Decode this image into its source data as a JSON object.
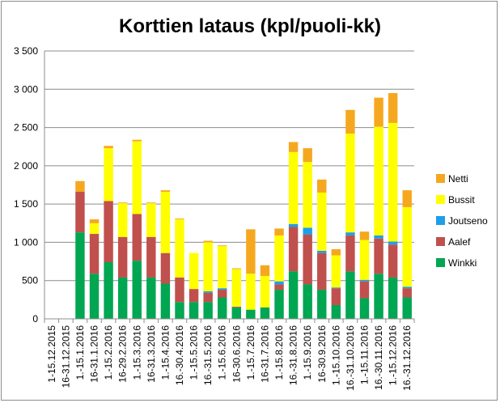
{
  "chart_data": {
    "type": "stacked-bar",
    "title": "Korttien lataus (kpl/puoli-kk)",
    "xlabel": "",
    "ylabel": "",
    "ylim": [
      0,
      3500
    ],
    "yticks": [
      0,
      500,
      1000,
      1500,
      2000,
      2500,
      3000,
      3500
    ],
    "ytick_labels": [
      "0",
      "500",
      "1 000",
      "1 500",
      "2 000",
      "2 500",
      "3 000",
      "3 500"
    ],
    "grid": true,
    "legend_position": "right",
    "categories": [
      "1-15.12.2015",
      "16-31.12.2015",
      "1.-15.1.2016",
      "16-31.1.2016",
      "1.-15.2.2016",
      "16-29.2.2016",
      "1.-15.3.2016",
      "16-31.3.2016",
      "1.-15.4.2016",
      "16.-30.4.2016",
      "1.-15.5.2016",
      "16.-31.5.2016",
      "1.-15.6.2016",
      "16-30.6.2016",
      "1.-15.7.2016",
      "16-31.7.2016",
      "1.-15.8.2016",
      "16.-31.8.2016",
      "1.-15.9.2016",
      "16-30.9.2016",
      "1.-15.10.2016",
      "16.-31.10.2016",
      "1.-15.11.2016",
      "16.-30.11.2016",
      "1.-15.12.2016",
      "16.-31.12.2016"
    ],
    "series": [
      {
        "name": "Winkki",
        "color": "#00a651",
        "values": [
          0,
          0,
          1130,
          590,
          740,
          540,
          760,
          540,
          460,
          220,
          220,
          220,
          280,
          150,
          120,
          150,
          380,
          620,
          450,
          380,
          180,
          620,
          270,
          590,
          540,
          280
        ]
      },
      {
        "name": "Aalef",
        "color": "#c0504d",
        "values": [
          0,
          0,
          530,
          520,
          800,
          530,
          610,
          530,
          400,
          320,
          170,
          120,
          100,
          10,
          0,
          0,
          70,
          580,
          650,
          480,
          220,
          470,
          220,
          460,
          430,
          120
        ]
      },
      {
        "name": "Joutseno",
        "color": "#1f9ee8",
        "values": [
          0,
          0,
          0,
          0,
          0,
          0,
          0,
          0,
          0,
          0,
          0,
          20,
          20,
          0,
          0,
          0,
          40,
          40,
          90,
          30,
          10,
          40,
          20,
          40,
          40,
          20
        ]
      },
      {
        "name": "Bussit",
        "color": "#ffff00",
        "values": [
          0,
          0,
          0,
          140,
          690,
          440,
          950,
          440,
          800,
          760,
          470,
          640,
          550,
          490,
          470,
          410,
          600,
          940,
          860,
          760,
          420,
          1290,
          520,
          1420,
          1550,
          1040
        ]
      },
      {
        "name": "Netti",
        "color": "#f5a81f",
        "values": [
          0,
          0,
          140,
          50,
          30,
          10,
          20,
          10,
          20,
          10,
          0,
          20,
          10,
          10,
          580,
          140,
          90,
          130,
          180,
          170,
          80,
          310,
          110,
          380,
          390,
          220
        ]
      }
    ]
  }
}
